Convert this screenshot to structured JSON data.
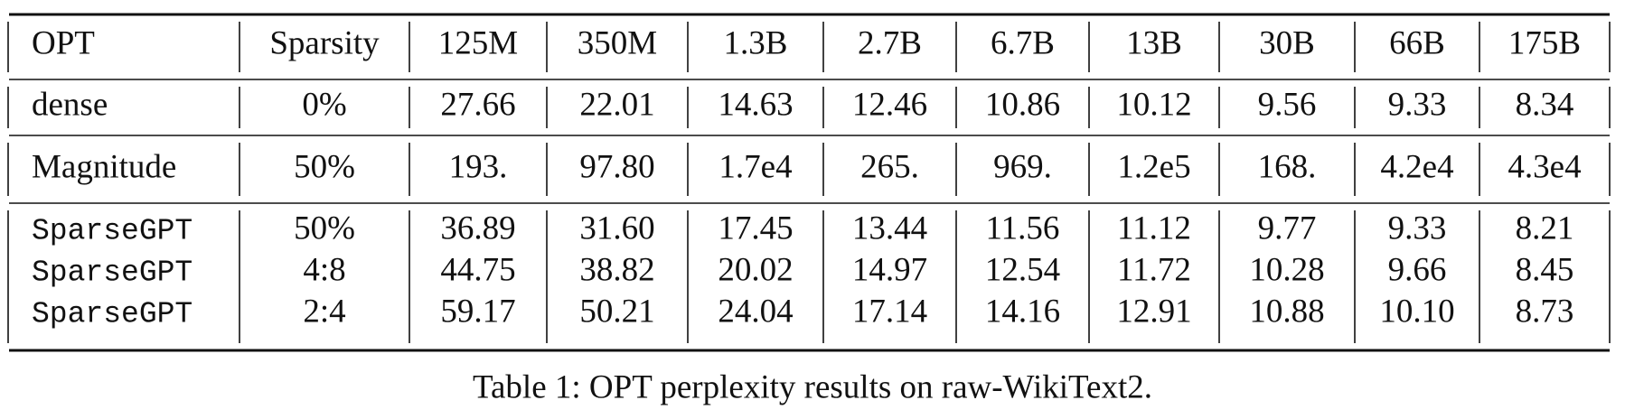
{
  "table": {
    "header": [
      "OPT",
      "Sparsity",
      "125M",
      "350M",
      "1.3B",
      "2.7B",
      "6.7B",
      "13B",
      "30B",
      "66B",
      "175B"
    ],
    "groups": [
      [
        [
          "dense",
          "0%",
          "27.66",
          "22.01",
          "14.63",
          "12.46",
          "10.86",
          "10.12",
          "9.56",
          "9.33",
          "8.34"
        ]
      ],
      [
        [
          "Magnitude",
          "50%",
          "193.",
          "97.80",
          "1.7e4",
          "265.",
          "969.",
          "1.2e5",
          "168.",
          "4.2e4",
          "4.3e4"
        ]
      ],
      [
        [
          "SparseGPT",
          "50%",
          "36.89",
          "31.60",
          "17.45",
          "13.44",
          "11.56",
          "11.12",
          "9.77",
          "9.33",
          "8.21"
        ],
        [
          "SparseGPT",
          "4:8",
          "44.75",
          "38.82",
          "20.02",
          "14.97",
          "12.54",
          "11.72",
          "10.28",
          "9.66",
          "8.45"
        ],
        [
          "SparseGPT",
          "2:4",
          "59.17",
          "50.21",
          "24.04",
          "17.14",
          "14.16",
          "12.91",
          "10.88",
          "10.10",
          "8.73"
        ]
      ]
    ]
  },
  "caption": "Table 1: OPT perplexity results on raw-WikiText2."
}
